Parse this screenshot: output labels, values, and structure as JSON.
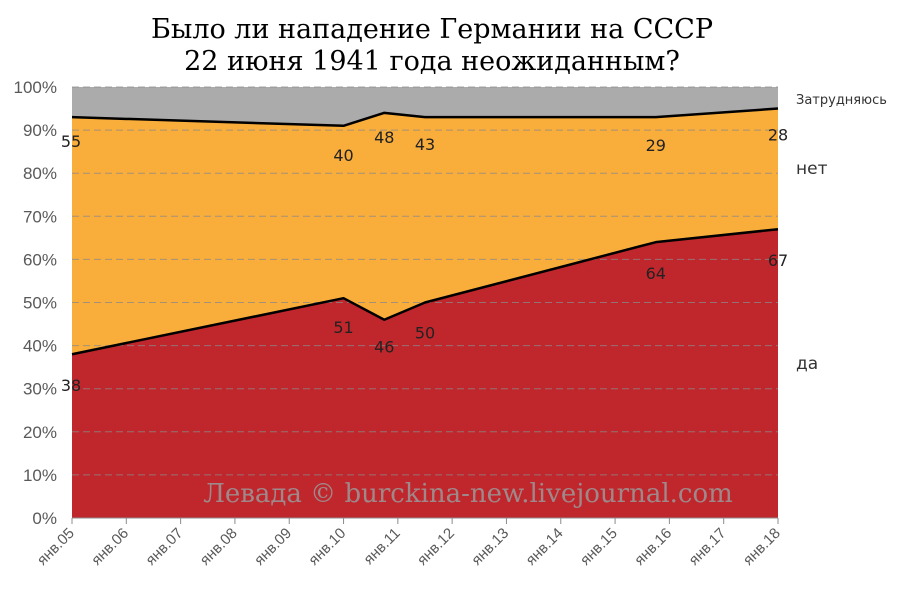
{
  "chart_data": {
    "type": "area",
    "title": [
      "Было ли нападение Германии на СССР",
      "22 июня 1941 года неожиданным?"
    ],
    "x_labels": [
      "янв.05",
      "янв.06",
      "янв.07",
      "янв.08",
      "янв.09",
      "янв.10",
      "янв.11",
      "янв.12",
      "янв.13",
      "янв.14",
      "янв.15",
      "янв.16",
      "янв.17",
      "янв.18"
    ],
    "points": [
      {
        "x": 0.0,
        "yes": 38,
        "no": 55
      },
      {
        "x": 5.0,
        "yes": 51,
        "no": 40
      },
      {
        "x": 5.75,
        "yes": 46,
        "no": 48
      },
      {
        "x": 6.5,
        "yes": 50,
        "no": 43
      },
      {
        "x": 10.75,
        "yes": 64,
        "no": 29
      },
      {
        "x": 13.0,
        "yes": 67,
        "no": 28
      }
    ],
    "series": [
      {
        "name": "да",
        "color": "#c0272d"
      },
      {
        "name": "нет",
        "color": "#f9ad3b"
      },
      {
        "name": "Затрудняюсь",
        "color": "#ababab"
      }
    ],
    "y_ticks": [
      "0%",
      "10%",
      "20%",
      "30%",
      "40%",
      "50%",
      "60%",
      "70%",
      "80%",
      "90%",
      "100%"
    ],
    "ylim": [
      0,
      100
    ],
    "grid": true
  },
  "watermark": "Левада © burckina-new.livejournal.com"
}
